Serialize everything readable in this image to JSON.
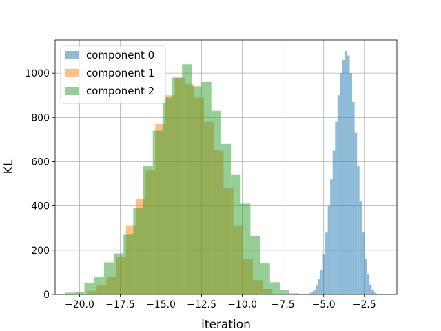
{
  "chart_data": {
    "type": "histogram",
    "xlabel": "iteration",
    "ylabel": "KL",
    "xlim": [
      -21.5,
      -0.5
    ],
    "ylim": [
      0,
      1150
    ],
    "x_ticks": [
      -20.0,
      -17.5,
      -15.0,
      -12.5,
      -10.0,
      -7.5,
      -5.0,
      -2.5
    ],
    "x_tick_labels": [
      "−20.0",
      "−17.5",
      "−15.0",
      "−12.5",
      "−10.0",
      "−7.5",
      "−5.0",
      "−2.5"
    ],
    "y_ticks": [
      0,
      200,
      400,
      600,
      800,
      1000
    ],
    "y_tick_labels": [
      "0",
      "200",
      "400",
      "600",
      "800",
      "1000"
    ],
    "grid": true,
    "legend_position": "top-left",
    "series": [
      {
        "name": "component 0",
        "color": "#1f77b4",
        "bin_edges": [
          -5.95,
          -5.8,
          -5.65,
          -5.5,
          -5.35,
          -5.2,
          -5.05,
          -4.9,
          -4.75,
          -4.6,
          -4.45,
          -4.3,
          -4.15,
          -4.0,
          -3.85,
          -3.7,
          -3.55,
          -3.4,
          -3.25,
          -3.1,
          -2.95,
          -2.8,
          -2.65,
          -2.5,
          -2.35,
          -2.2,
          -2.05,
          -1.9,
          -1.75,
          -1.6,
          -1.45
        ],
        "counts": [
          5,
          10,
          20,
          40,
          70,
          110,
          180,
          280,
          400,
          520,
          650,
          780,
          900,
          1000,
          1060,
          1100,
          1080,
          1000,
          870,
          730,
          580,
          420,
          280,
          160,
          90,
          45,
          20,
          8,
          3,
          1
        ]
      },
      {
        "name": "component 1",
        "color": "#ff7f0e",
        "bin_edges": [
          -19.55,
          -18.95,
          -18.35,
          -17.75,
          -17.15,
          -16.55,
          -15.95,
          -15.35,
          -14.75,
          -14.15,
          -13.55,
          -12.95,
          -12.35,
          -11.75,
          -11.15,
          -10.55,
          -9.95,
          -9.35,
          -8.75,
          -8.15
        ],
        "counts": [
          15,
          40,
          80,
          170,
          310,
          430,
          560,
          770,
          900,
          980,
          950,
          890,
          780,
          650,
          480,
          310,
          160,
          65,
          25
        ]
      },
      {
        "name": "component 2",
        "color": "#2ca02c",
        "bin_edges": [
          -20.9,
          -20.3,
          -19.7,
          -19.1,
          -18.5,
          -17.9,
          -17.3,
          -16.7,
          -16.1,
          -15.5,
          -14.9,
          -14.3,
          -13.7,
          -13.1,
          -12.5,
          -11.9,
          -11.3,
          -10.7,
          -10.1,
          -9.5,
          -8.9,
          -8.3,
          -7.7,
          -7.1,
          -6.5
        ],
        "counts": [
          8,
          10,
          50,
          80,
          145,
          185,
          270,
          390,
          580,
          740,
          890,
          980,
          1040,
          940,
          960,
          830,
          680,
          540,
          410,
          265,
          140,
          55,
          20,
          5
        ]
      }
    ]
  }
}
